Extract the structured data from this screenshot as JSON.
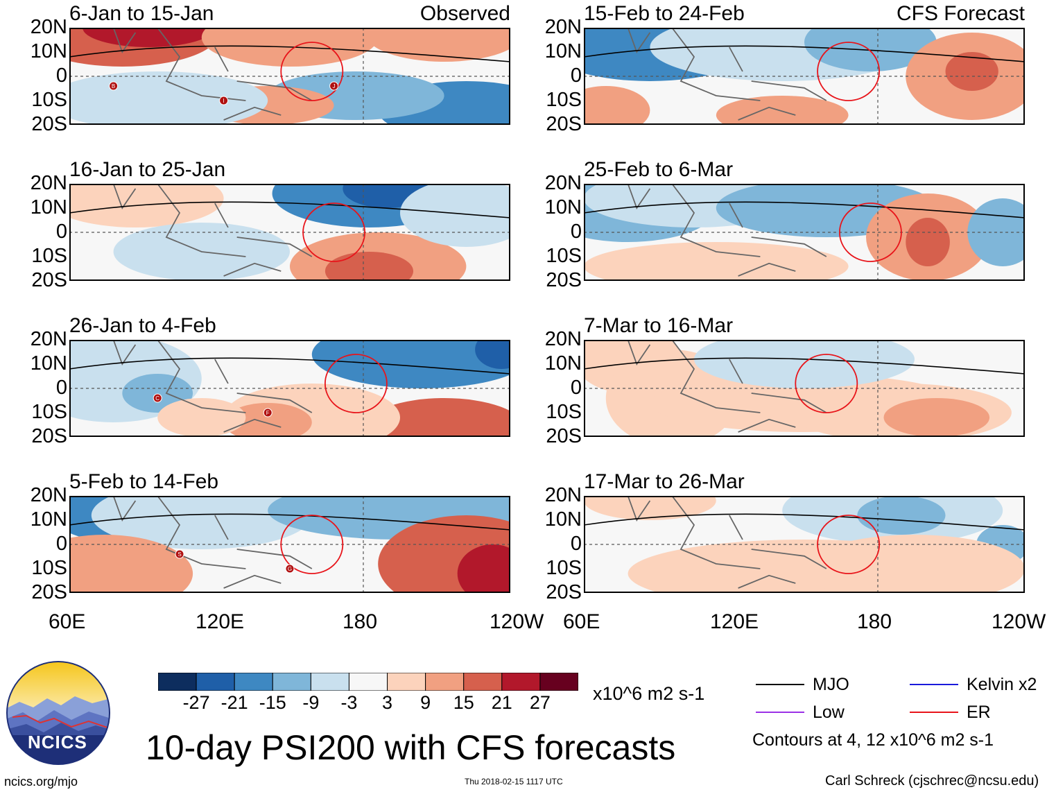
{
  "figure": {
    "title": "10-day PSI200 with CFS forecasts",
    "units": "x10^6 m2 s-1",
    "site": "ncics.org/mjo",
    "timestamp": "Thu 2018-02-15 1117 UTC",
    "credit": "Carl Schreck (cjschrec@ncsu.edu)",
    "logo_text": "NCICS"
  },
  "columns": [
    {
      "label": "Observed"
    },
    {
      "label": "CFS Forecast"
    }
  ],
  "chart_data": {
    "type": "heatmap",
    "variable": "PSI200 anomaly (10-day mean)",
    "x_ticks": [
      "60E",
      "120E",
      "180",
      "120W"
    ],
    "y_ticks": [
      "20N",
      "10N",
      "0",
      "10S",
      "20S"
    ],
    "xlim": [
      "60E",
      "120W"
    ],
    "ylim": [
      "20S",
      "20N"
    ],
    "colorbar": {
      "labels": [
        "-27",
        "-21",
        "-15",
        "-9",
        "-3",
        "3",
        "9",
        "15",
        "21",
        "27"
      ],
      "colors": [
        "#0d2d5e",
        "#1f5fa8",
        "#3e88c2",
        "#7fb6d9",
        "#c9e0ee",
        "#f7f7f7",
        "#fcd3bc",
        "#f1a081",
        "#d6604d",
        "#b2182b",
        "#67001f"
      ]
    },
    "panels": [
      {
        "column": "Observed",
        "period": "6-Jan to 15-Jan",
        "tc_labels": [
          "B",
          "I",
          "J"
        ]
      },
      {
        "column": "Observed",
        "period": "16-Jan to 25-Jan",
        "tc_labels": []
      },
      {
        "column": "Observed",
        "period": "26-Jan to 4-Feb",
        "tc_labels": [
          "C",
          "F"
        ]
      },
      {
        "column": "Observed",
        "period": "5-Feb to 14-Feb",
        "tc_labels": [
          "S",
          "G"
        ]
      },
      {
        "column": "CFS Forecast",
        "period": "15-Feb to 24-Feb",
        "tc_labels": []
      },
      {
        "column": "CFS Forecast",
        "period": "25-Feb to 6-Mar",
        "tc_labels": []
      },
      {
        "column": "CFS Forecast",
        "period": "7-Mar to 16-Mar",
        "tc_labels": []
      },
      {
        "column": "CFS Forecast",
        "period": "17-Mar to 26-Mar",
        "tc_labels": []
      }
    ],
    "legend": [
      {
        "name": "MJO",
        "color": "#000000"
      },
      {
        "name": "Kelvin x2",
        "color": "#1a1adb"
      },
      {
        "name": "Low",
        "color": "#9b30e6"
      },
      {
        "name": "ER",
        "color": "#e8141a"
      }
    ],
    "contour_note": "Contours at 4, 12 x10^6 m2 s-1"
  }
}
